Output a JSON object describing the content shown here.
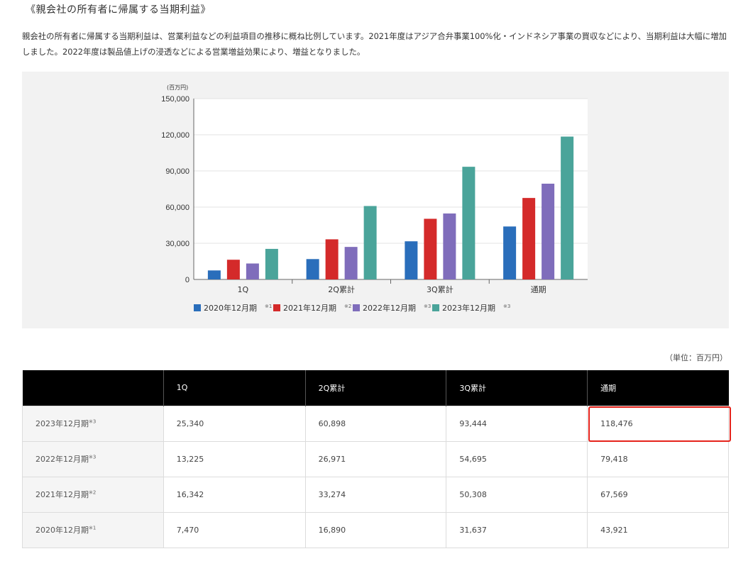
{
  "heading": "《親会社の所有者に帰属する当期利益》",
  "description": "親会社の所有者に帰属する当期利益は、営業利益などの利益項目の推移に概ね比例しています。2021年度はアジア合弁事業100%化・インドネシア事業の買収などにより、当期利益は大幅に増加しました。2022年度は製品値上げの浸透などによる営業増益効果により、増益となりました。",
  "chart_data": {
    "type": "bar",
    "unit_label": "(百万円)",
    "categories": [
      "1Q",
      "2Q累計",
      "3Q累計",
      "通期"
    ],
    "ylim": [
      0,
      150000
    ],
    "yticks": [
      "0",
      "30,000",
      "60,000",
      "90,000",
      "120,000",
      "150,000"
    ],
    "ytick_values": [
      0,
      30000,
      60000,
      90000,
      120000,
      150000
    ],
    "grid": true,
    "legend_position": "bottom",
    "series": [
      {
        "name": "2020年12月期",
        "note": "※1",
        "color": "#2a6ebb",
        "values": [
          7470,
          16890,
          31637,
          43921
        ]
      },
      {
        "name": "2021年12月期",
        "note": "※2",
        "color": "#d42a2a",
        "values": [
          16342,
          33274,
          50308,
          67569
        ]
      },
      {
        "name": "2022年12月期",
        "note": "※3",
        "color": "#7f6dbb",
        "values": [
          13225,
          26971,
          54695,
          79418
        ]
      },
      {
        "name": "2023年12月期",
        "note": "※3",
        "color": "#4aa49a",
        "values": [
          25340,
          60898,
          93444,
          118476
        ]
      }
    ]
  },
  "table": {
    "unit_note": "（単位：百万円）",
    "headers": [
      "",
      "1Q",
      "2Q累計",
      "3Q累計",
      "通期"
    ],
    "rows": [
      {
        "label": "2023年12月期",
        "note": "※3",
        "cells": [
          "25,340",
          "60,898",
          "93,444",
          "118,476"
        ]
      },
      {
        "label": "2022年12月期",
        "note": "※3",
        "cells": [
          "13,225",
          "26,971",
          "54,695",
          "79,418"
        ]
      },
      {
        "label": "2021年12月期",
        "note": "※2",
        "cells": [
          "16,342",
          "33,274",
          "50,308",
          "67,569"
        ]
      },
      {
        "label": "2020年12月期",
        "note": "※1",
        "cells": [
          "7,470",
          "16,890",
          "31,637",
          "43,921"
        ]
      }
    ]
  }
}
